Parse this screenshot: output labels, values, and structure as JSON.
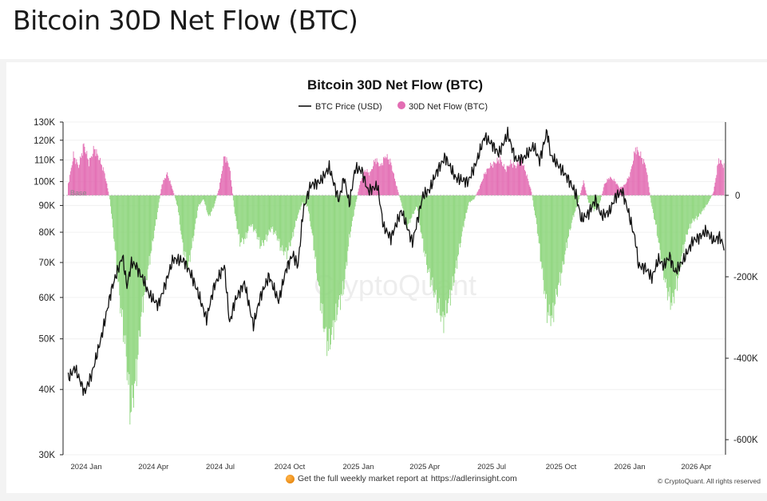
{
  "page": {
    "title": "Bitcoin 30D Net Flow (BTC)"
  },
  "footer": {
    "note": "Get the full weekly market report at",
    "link": "https://adlerinsight.com",
    "copyright": "© CryptoQuant. All rights reserved"
  },
  "chart_data": {
    "type": "bar",
    "title": "Bitcoin 30D Net Flow (BTC)",
    "watermark": "CryptoQuant",
    "base_label": "Base",
    "legend_position": "top-center",
    "legend": [
      {
        "name": "BTC Price (USD)",
        "marker": "line",
        "color": "#111111"
      },
      {
        "name": "30D Net Flow (BTC)",
        "marker": "circle",
        "color": "#e36db3"
      }
    ],
    "colors": {
      "positive": "#e36db3",
      "negative": "#8fd67e",
      "price": "#111111"
    },
    "x_range": [
      "2023-12-25",
      "2026-06-03"
    ],
    "x_ticks": [
      {
        "date": "2024-01-01",
        "label": "2024 Jan"
      },
      {
        "date": "2024-04-01",
        "label": "2024 Apr"
      },
      {
        "date": "2024-07-01",
        "label": "2024 Jul"
      },
      {
        "date": "2024-10-01",
        "label": "2024 Oct"
      },
      {
        "date": "2025-01-01",
        "label": "2025 Jan"
      },
      {
        "date": "2025-04-01",
        "label": "2025 Apr"
      },
      {
        "date": "2025-07-01",
        "label": "2025 Jul"
      },
      {
        "date": "2025-10-01",
        "label": "2025 Oct"
      },
      {
        "date": "2026-01-01",
        "label": "2026 Jan"
      },
      {
        "date": "2026-04-01",
        "label": "2026 Apr"
      }
    ],
    "left_axis": {
      "label": "BTC Price (USD)",
      "scale": "log",
      "range": [
        30000,
        130000
      ],
      "ticks": [
        {
          "value": 30000,
          "label": "30K"
        },
        {
          "value": 40000,
          "label": "40K"
        },
        {
          "value": 50000,
          "label": "50K"
        },
        {
          "value": 60000,
          "label": "60K"
        },
        {
          "value": 70000,
          "label": "70K"
        },
        {
          "value": 80000,
          "label": "80K"
        },
        {
          "value": 90000,
          "label": "90K"
        },
        {
          "value": 100000,
          "label": "100K"
        },
        {
          "value": 110000,
          "label": "110K"
        },
        {
          "value": 120000,
          "label": "120K"
        },
        {
          "value": 130000,
          "label": "130K"
        }
      ]
    },
    "right_axis": {
      "label": "30D Net Flow (BTC)",
      "scale": "linear",
      "range": [
        -637000,
        180000
      ],
      "ticks": [
        {
          "value": 0,
          "label": "0"
        },
        {
          "value": -200000,
          "label": "-200K"
        },
        {
          "value": -400000,
          "label": "-400K"
        },
        {
          "value": -600000,
          "label": "-600K"
        }
      ]
    },
    "series": [
      {
        "name": "BTC Price (USD)",
        "type": "line",
        "points": [
          [
            "2024-01-01",
            42000
          ],
          [
            "2024-01-10",
            44000
          ],
          [
            "2024-01-23",
            39500
          ],
          [
            "2024-02-01",
            42500
          ],
          [
            "2024-02-14",
            50000
          ],
          [
            "2024-02-28",
            62000
          ],
          [
            "2024-03-05",
            66000
          ],
          [
            "2024-03-14",
            72000
          ],
          [
            "2024-03-20",
            63000
          ],
          [
            "2024-03-26",
            70000
          ],
          [
            "2024-04-01",
            69000
          ],
          [
            "2024-04-13",
            64000
          ],
          [
            "2024-04-18",
            61000
          ],
          [
            "2024-05-01",
            58000
          ],
          [
            "2024-05-08",
            62000
          ],
          [
            "2024-05-21",
            71000
          ],
          [
            "2024-06-05",
            70500
          ],
          [
            "2024-06-15",
            66000
          ],
          [
            "2024-06-24",
            61000
          ],
          [
            "2024-07-05",
            54500
          ],
          [
            "2024-07-15",
            63000
          ],
          [
            "2024-07-29",
            69000
          ],
          [
            "2024-08-05",
            53500
          ],
          [
            "2024-08-12",
            59000
          ],
          [
            "2024-08-25",
            64000
          ],
          [
            "2024-09-06",
            53000
          ],
          [
            "2024-09-15",
            60000
          ],
          [
            "2024-09-27",
            66000
          ],
          [
            "2024-10-10",
            59000
          ],
          [
            "2024-10-20",
            68000
          ],
          [
            "2024-10-29",
            72500
          ],
          [
            "2024-11-05",
            69000
          ],
          [
            "2024-11-12",
            88000
          ],
          [
            "2024-11-22",
            98500
          ],
          [
            "2024-12-05",
            100000
          ],
          [
            "2024-12-17",
            106500
          ],
          [
            "2024-12-30",
            92000
          ],
          [
            "2025-01-06",
            102000
          ],
          [
            "2025-01-13",
            90500
          ],
          [
            "2025-01-21",
            106000
          ],
          [
            "2025-01-30",
            105000
          ],
          [
            "2025-02-07",
            96000
          ],
          [
            "2025-02-20",
            98000
          ],
          [
            "2025-02-28",
            82000
          ],
          [
            "2025-03-10",
            78000
          ],
          [
            "2025-03-24",
            88000
          ],
          [
            "2025-04-08",
            76500
          ],
          [
            "2025-04-22",
            94000
          ],
          [
            "2025-05-01",
            96500
          ],
          [
            "2025-05-10",
            104000
          ],
          [
            "2025-05-22",
            111500
          ],
          [
            "2025-06-05",
            101500
          ],
          [
            "2025-06-22",
            100000
          ],
          [
            "2025-07-03",
            109000
          ],
          [
            "2025-07-14",
            122000
          ],
          [
            "2025-07-25",
            117500
          ],
          [
            "2025-08-02",
            113000
          ],
          [
            "2025-08-14",
            123500
          ],
          [
            "2025-08-25",
            110000
          ],
          [
            "2025-09-05",
            111000
          ],
          [
            "2025-09-18",
            117000
          ],
          [
            "2025-09-26",
            109500
          ],
          [
            "2025-10-06",
            125000
          ],
          [
            "2025-10-11",
            112000
          ],
          [
            "2025-10-20",
            108000
          ],
          [
            "2025-11-04",
            101000
          ],
          [
            "2025-11-14",
            94500
          ],
          [
            "2025-11-21",
            84500
          ],
          [
            "2025-12-01",
            87000
          ],
          [
            "2025-12-10",
            92500
          ],
          [
            "2025-12-18",
            86000
          ],
          [
            "2025-12-29",
            87500
          ],
          [
            "2026-01-06",
            93500
          ],
          [
            "2026-01-15",
            96000
          ],
          [
            "2026-01-22",
            89000
          ],
          [
            "2026-02-02",
            77000
          ],
          [
            "2026-02-06",
            69000
          ],
          [
            "2026-02-15",
            68500
          ],
          [
            "2026-02-24",
            65500
          ],
          [
            "2026-03-05",
            71000
          ],
          [
            "2026-03-12",
            69000
          ],
          [
            "2026-03-20",
            72000
          ],
          [
            "2026-03-27",
            67000
          ],
          [
            "2026-04-08",
            71000
          ],
          [
            "2026-04-20",
            77000
          ],
          [
            "2026-04-30",
            78500
          ],
          [
            "2026-05-08",
            80500
          ],
          [
            "2026-05-18",
            77000
          ],
          [
            "2026-05-26",
            78500
          ],
          [
            "2026-06-01",
            75000
          ]
        ]
      },
      {
        "name": "30D Net Flow (BTC)",
        "type": "bar",
        "points": [
          [
            "2024-01-01",
            30000
          ],
          [
            "2024-01-08",
            110000
          ],
          [
            "2024-01-15",
            80000
          ],
          [
            "2024-01-22",
            140000
          ],
          [
            "2024-01-29",
            90000
          ],
          [
            "2024-02-05",
            130000
          ],
          [
            "2024-02-12",
            100000
          ],
          [
            "2024-02-19",
            60000
          ],
          [
            "2024-02-26",
            -10000
          ],
          [
            "2024-03-04",
            -150000
          ],
          [
            "2024-03-11",
            -300000
          ],
          [
            "2024-03-18",
            -420000
          ],
          [
            "2024-03-25",
            -600000
          ],
          [
            "2024-04-01",
            -500000
          ],
          [
            "2024-04-08",
            -340000
          ],
          [
            "2024-04-15",
            -230000
          ],
          [
            "2024-04-22",
            -150000
          ],
          [
            "2024-04-29",
            -60000
          ],
          [
            "2024-05-06",
            30000
          ],
          [
            "2024-05-13",
            60000
          ],
          [
            "2024-05-20",
            20000
          ],
          [
            "2024-05-27",
            -30000
          ],
          [
            "2024-06-03",
            -140000
          ],
          [
            "2024-06-10",
            -200000
          ],
          [
            "2024-06-17",
            -120000
          ],
          [
            "2024-06-24",
            -30000
          ],
          [
            "2024-07-01",
            -10000
          ],
          [
            "2024-07-08",
            -60000
          ],
          [
            "2024-07-15",
            -30000
          ],
          [
            "2024-07-22",
            20000
          ],
          [
            "2024-07-29",
            110000
          ],
          [
            "2024-08-05",
            80000
          ],
          [
            "2024-08-12",
            -50000
          ],
          [
            "2024-08-19",
            -130000
          ],
          [
            "2024-08-26",
            -120000
          ],
          [
            "2024-09-02",
            -80000
          ],
          [
            "2024-09-09",
            -100000
          ],
          [
            "2024-09-16",
            -140000
          ],
          [
            "2024-09-23",
            -120000
          ],
          [
            "2024-09-30",
            -90000
          ],
          [
            "2024-10-07",
            -110000
          ],
          [
            "2024-10-14",
            -150000
          ],
          [
            "2024-10-21",
            -160000
          ],
          [
            "2024-10-28",
            -120000
          ],
          [
            "2024-11-04",
            -60000
          ],
          [
            "2024-11-11",
            -20000
          ],
          [
            "2024-11-18",
            -30000
          ],
          [
            "2024-11-25",
            -120000
          ],
          [
            "2024-12-02",
            -240000
          ],
          [
            "2024-12-09",
            -350000
          ],
          [
            "2024-12-16",
            -420000
          ],
          [
            "2024-12-23",
            -360000
          ],
          [
            "2024-12-30",
            -300000
          ],
          [
            "2025-01-06",
            -250000
          ],
          [
            "2025-01-13",
            -120000
          ],
          [
            "2025-01-20",
            -40000
          ],
          [
            "2025-01-27",
            30000
          ],
          [
            "2025-02-03",
            70000
          ],
          [
            "2025-02-10",
            60000
          ],
          [
            "2025-02-17",
            100000
          ],
          [
            "2025-02-24",
            80000
          ],
          [
            "2025-03-03",
            110000
          ],
          [
            "2025-03-10",
            90000
          ],
          [
            "2025-03-17",
            30000
          ],
          [
            "2025-03-24",
            -20000
          ],
          [
            "2025-03-31",
            -90000
          ],
          [
            "2025-04-07",
            -60000
          ],
          [
            "2025-04-14",
            -30000
          ],
          [
            "2025-04-21",
            -120000
          ],
          [
            "2025-04-28",
            -200000
          ],
          [
            "2025-05-05",
            -250000
          ],
          [
            "2025-05-12",
            -300000
          ],
          [
            "2025-05-19",
            -350000
          ],
          [
            "2025-05-26",
            -300000
          ],
          [
            "2025-06-02",
            -240000
          ],
          [
            "2025-06-09",
            -160000
          ],
          [
            "2025-06-16",
            -80000
          ],
          [
            "2025-06-23",
            -20000
          ],
          [
            "2025-06-30",
            -10000
          ],
          [
            "2025-07-07",
            20000
          ],
          [
            "2025-07-14",
            60000
          ],
          [
            "2025-07-21",
            80000
          ],
          [
            "2025-07-28",
            90000
          ],
          [
            "2025-08-04",
            100000
          ],
          [
            "2025-08-11",
            70000
          ],
          [
            "2025-08-18",
            90000
          ],
          [
            "2025-08-25",
            80000
          ],
          [
            "2025-09-01",
            100000
          ],
          [
            "2025-09-08",
            60000
          ],
          [
            "2025-09-15",
            10000
          ],
          [
            "2025-09-22",
            -80000
          ],
          [
            "2025-09-29",
            -200000
          ],
          [
            "2025-10-06",
            -320000
          ],
          [
            "2025-10-13",
            -340000
          ],
          [
            "2025-10-20",
            -260000
          ],
          [
            "2025-10-27",
            -200000
          ],
          [
            "2025-11-03",
            -120000
          ],
          [
            "2025-11-10",
            -60000
          ],
          [
            "2025-11-17",
            -20000
          ],
          [
            "2025-11-24",
            40000
          ],
          [
            "2025-12-01",
            -20000
          ],
          [
            "2025-12-08",
            -40000
          ],
          [
            "2025-12-15",
            -30000
          ],
          [
            "2025-12-22",
            30000
          ],
          [
            "2025-12-29",
            50000
          ],
          [
            "2026-01-05",
            40000
          ],
          [
            "2026-01-12",
            20000
          ],
          [
            "2026-01-19",
            30000
          ],
          [
            "2026-01-26",
            60000
          ],
          [
            "2026-02-02",
            130000
          ],
          [
            "2026-02-09",
            110000
          ],
          [
            "2026-02-16",
            80000
          ],
          [
            "2026-02-23",
            -20000
          ],
          [
            "2026-03-02",
            -90000
          ],
          [
            "2026-03-09",
            -180000
          ],
          [
            "2026-03-16",
            -260000
          ],
          [
            "2026-03-23",
            -300000
          ],
          [
            "2026-03-30",
            -240000
          ],
          [
            "2026-04-06",
            -160000
          ],
          [
            "2026-04-13",
            -100000
          ],
          [
            "2026-04-20",
            -70000
          ],
          [
            "2026-04-27",
            -60000
          ],
          [
            "2026-05-04",
            -40000
          ],
          [
            "2026-05-11",
            -20000
          ],
          [
            "2026-05-18",
            10000
          ],
          [
            "2026-05-25",
            100000
          ],
          [
            "2026-06-01",
            80000
          ]
        ]
      }
    ]
  }
}
